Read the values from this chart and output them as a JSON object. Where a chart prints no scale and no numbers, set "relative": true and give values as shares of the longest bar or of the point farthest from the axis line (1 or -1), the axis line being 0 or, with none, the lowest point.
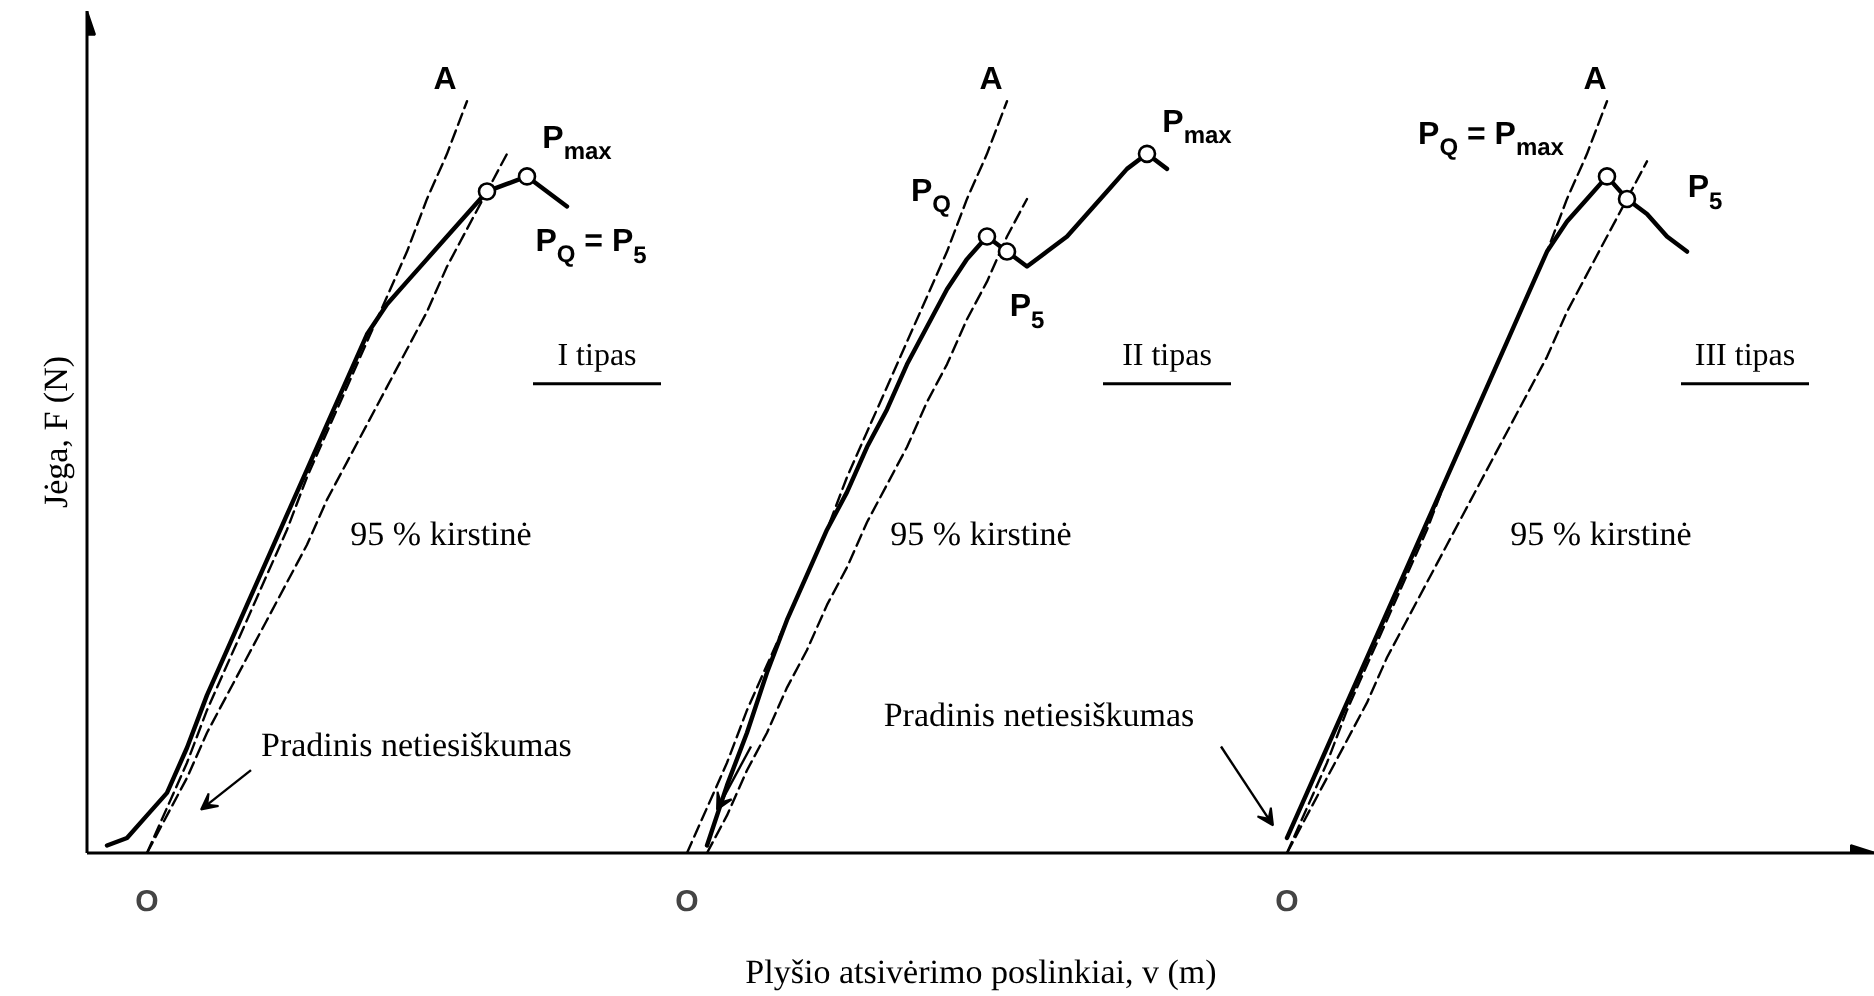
{
  "chart_data": {
    "type": "line",
    "relative": true,
    "xlabel": "Plyšio atsivėrimo poslinkiai, v (m)",
    "ylabel": "Jėga, F (N)",
    "tick_labels": "x",
    "grid": false,
    "categories": [
      null,
      null,
      null,
      "O",
      null,
      null,
      null,
      null,
      null,
      null,
      null,
      null,
      null,
      null,
      null,
      null,
      null,
      null,
      null,
      null,
      null,
      null,
      null,
      null,
      null,
      null,
      null,
      null,
      null,
      null,
      "O",
      null,
      null,
      null,
      null,
      null,
      null,
      null,
      null,
      null,
      null,
      null,
      null,
      null,
      null,
      null,
      null,
      null,
      null,
      null,
      null,
      null,
      null,
      null,
      null,
      null,
      null,
      null,
      null,
      null,
      "O",
      null,
      null,
      null,
      null,
      null,
      null,
      null,
      null,
      null,
      null,
      null,
      null,
      null,
      null,
      null,
      null,
      null,
      null,
      null,
      null,
      null,
      null,
      null,
      null,
      null,
      null,
      null,
      null,
      null
    ],
    "series": [
      {
        "name": "I tipas",
        "color": "#000000",
        "line_style": "solid",
        "values": [
          null,
          0.01,
          0.02,
          0.05,
          0.08,
          0.14,
          0.21,
          0.27,
          0.33,
          0.39,
          0.45,
          0.51,
          0.57,
          0.63,
          0.69,
          0.73,
          0.76,
          0.79,
          0.82,
          0.85,
          0.88,
          0.89,
          0.9,
          0.88,
          0.86,
          null,
          null,
          null,
          null,
          null,
          null,
          null,
          null,
          null,
          null,
          null,
          null,
          null,
          null,
          null,
          null,
          null,
          null,
          null,
          null,
          null,
          null,
          null,
          null,
          null,
          null,
          null,
          null,
          null,
          null,
          null,
          null,
          null,
          null,
          null,
          null,
          null,
          null,
          null,
          null,
          null,
          null,
          null,
          null,
          null,
          null,
          null,
          null,
          null,
          null,
          null,
          null,
          null,
          null,
          null,
          null,
          null,
          null,
          null,
          null,
          null,
          null,
          null,
          null,
          null
        ]
      },
      {
        "color": "#000000",
        "line_style": "dashed",
        "values": [
          null,
          null,
          null,
          0,
          0.06,
          0.12,
          0.19,
          0.25,
          0.31,
          0.37,
          0.43,
          0.5,
          0.56,
          0.62,
          0.68,
          0.74,
          0.8,
          0.87,
          0.93,
          1,
          null,
          null,
          null,
          null,
          null,
          null,
          null,
          null,
          null,
          null,
          null,
          null,
          null,
          null,
          null,
          null,
          null,
          null,
          null,
          null,
          null,
          null,
          null,
          null,
          null,
          null,
          null,
          null,
          null,
          null,
          null,
          null,
          null,
          null,
          null,
          null,
          null,
          null,
          null,
          null,
          null,
          null,
          null,
          null,
          null,
          null,
          null,
          null,
          null,
          null,
          null,
          null,
          null,
          null,
          null,
          null,
          null,
          null,
          null,
          null,
          null,
          null,
          null,
          null,
          null,
          null,
          null,
          null,
          null,
          null
        ]
      },
      {
        "color": "#000000",
        "line_style": "dashed",
        "values": [
          null,
          null,
          null,
          0,
          0.05,
          0.1,
          0.16,
          0.21,
          0.26,
          0.31,
          0.36,
          0.41,
          0.47,
          0.52,
          0.57,
          0.62,
          0.67,
          0.72,
          0.78,
          0.83,
          0.88,
          0.93,
          null,
          null,
          null,
          null,
          null,
          null,
          null,
          null,
          null,
          null,
          null,
          null,
          null,
          null,
          null,
          null,
          null,
          null,
          null,
          null,
          null,
          null,
          null,
          null,
          null,
          null,
          null,
          null,
          null,
          null,
          null,
          null,
          null,
          null,
          null,
          null,
          null,
          null,
          null,
          null,
          null,
          null,
          null,
          null,
          null,
          null,
          null,
          null,
          null,
          null,
          null,
          null,
          null,
          null,
          null,
          null,
          null,
          null,
          null,
          null,
          null,
          null,
          null,
          null,
          null,
          null,
          null,
          null
        ]
      },
      {
        "name": "II tipas",
        "color": "#000000",
        "line_style": "solid",
        "values": [
          null,
          null,
          null,
          null,
          null,
          null,
          null,
          null,
          null,
          null,
          null,
          null,
          null,
          null,
          null,
          null,
          null,
          null,
          null,
          null,
          null,
          null,
          null,
          null,
          null,
          null,
          null,
          null,
          null,
          null,
          null,
          0.01,
          0.09,
          0.16,
          0.24,
          0.31,
          0.37,
          0.43,
          0.48,
          0.54,
          0.59,
          0.65,
          0.7,
          0.75,
          0.79,
          0.82,
          0.8,
          0.78,
          0.8,
          0.82,
          0.85,
          0.88,
          0.91,
          0.93,
          0.91,
          null,
          null,
          null,
          null,
          null,
          null,
          null,
          null,
          null,
          null,
          null,
          null,
          null,
          null,
          null,
          null,
          null,
          null,
          null,
          null,
          null,
          null,
          null,
          null,
          null,
          null,
          null,
          null,
          null,
          null,
          null,
          null,
          null,
          null,
          null
        ]
      },
      {
        "color": "#000000",
        "line_style": "dashed",
        "values": [
          null,
          null,
          null,
          null,
          null,
          null,
          null,
          null,
          null,
          null,
          null,
          null,
          null,
          null,
          null,
          null,
          null,
          null,
          null,
          null,
          null,
          null,
          null,
          null,
          null,
          null,
          null,
          null,
          null,
          null,
          0,
          0.06,
          0.12,
          0.19,
          0.25,
          0.31,
          0.37,
          0.43,
          0.5,
          0.56,
          0.62,
          0.68,
          0.74,
          0.8,
          0.87,
          0.93,
          1,
          null,
          null,
          null,
          null,
          null,
          null,
          null,
          null,
          null,
          null,
          null,
          null,
          null,
          null,
          null,
          null,
          null,
          null,
          null,
          null,
          null,
          null,
          null,
          null,
          null,
          null,
          null,
          null,
          null,
          null,
          null,
          null,
          null,
          null,
          null,
          null,
          null,
          null,
          null,
          null,
          null,
          null,
          null
        ]
      },
      {
        "color": "#000000",
        "line_style": "dashed",
        "values": [
          null,
          null,
          null,
          null,
          null,
          null,
          null,
          null,
          null,
          null,
          null,
          null,
          null,
          null,
          null,
          null,
          null,
          null,
          null,
          null,
          null,
          null,
          null,
          null,
          null,
          null,
          null,
          null,
          null,
          null,
          null,
          0,
          0.05,
          0.11,
          0.16,
          0.22,
          0.27,
          0.33,
          0.38,
          0.44,
          0.49,
          0.54,
          0.6,
          0.65,
          0.71,
          0.76,
          0.82,
          0.87,
          null,
          null,
          null,
          null,
          null,
          null,
          null,
          null,
          null,
          null,
          null,
          null,
          null,
          null,
          null,
          null,
          null,
          null,
          null,
          null,
          null,
          null,
          null,
          null,
          null,
          null,
          null,
          null,
          null,
          null,
          null,
          null,
          null,
          null,
          null,
          null,
          null,
          null,
          null,
          null,
          null,
          null
        ]
      },
      {
        "name": "III tipas",
        "color": "#000000",
        "line_style": "solid",
        "values": [
          null,
          null,
          null,
          null,
          null,
          null,
          null,
          null,
          null,
          null,
          null,
          null,
          null,
          null,
          null,
          null,
          null,
          null,
          null,
          null,
          null,
          null,
          null,
          null,
          null,
          null,
          null,
          null,
          null,
          null,
          null,
          null,
          null,
          null,
          null,
          null,
          null,
          null,
          null,
          null,
          null,
          null,
          null,
          null,
          null,
          null,
          null,
          null,
          null,
          null,
          null,
          null,
          null,
          null,
          null,
          null,
          null,
          null,
          null,
          null,
          0.02,
          0.08,
          0.14,
          0.2,
          0.26,
          0.32,
          0.38,
          0.44,
          0.5,
          0.56,
          0.62,
          0.68,
          0.74,
          0.8,
          0.84,
          0.87,
          0.9,
          0.87,
          0.85,
          0.82,
          0.8,
          null,
          null,
          null,
          null,
          null,
          null,
          null,
          null,
          null
        ]
      },
      {
        "color": "#000000",
        "line_style": "dashed",
        "values": [
          null,
          null,
          null,
          null,
          null,
          null,
          null,
          null,
          null,
          null,
          null,
          null,
          null,
          null,
          null,
          null,
          null,
          null,
          null,
          null,
          null,
          null,
          null,
          null,
          null,
          null,
          null,
          null,
          null,
          null,
          null,
          null,
          null,
          null,
          null,
          null,
          null,
          null,
          null,
          null,
          null,
          null,
          null,
          null,
          null,
          null,
          null,
          null,
          null,
          null,
          null,
          null,
          null,
          null,
          null,
          null,
          null,
          null,
          null,
          null,
          0,
          0.06,
          0.12,
          0.19,
          0.25,
          0.31,
          0.37,
          0.43,
          0.5,
          0.56,
          0.62,
          0.68,
          0.74,
          0.8,
          0.87,
          0.93,
          1,
          null,
          null,
          null,
          null,
          null,
          null,
          null,
          null,
          null,
          null,
          null,
          null,
          null
        ]
      },
      {
        "color": "#000000",
        "line_style": "dashed",
        "values": [
          null,
          null,
          null,
          null,
          null,
          null,
          null,
          null,
          null,
          null,
          null,
          null,
          null,
          null,
          null,
          null,
          null,
          null,
          null,
          null,
          null,
          null,
          null,
          null,
          null,
          null,
          null,
          null,
          null,
          null,
          null,
          null,
          null,
          null,
          null,
          null,
          null,
          null,
          null,
          null,
          null,
          null,
          null,
          null,
          null,
          null,
          null,
          null,
          null,
          null,
          null,
          null,
          null,
          null,
          null,
          null,
          null,
          null,
          null,
          null,
          0,
          0.05,
          0.1,
          0.15,
          0.2,
          0.26,
          0.31,
          0.36,
          0.41,
          0.46,
          0.51,
          0.56,
          0.61,
          0.66,
          0.72,
          0.77,
          0.82,
          0.87,
          0.92,
          null,
          null,
          null,
          null,
          null,
          null,
          null,
          null,
          null,
          null,
          null
        ]
      },
      {
        "type": "scatter",
        "marker": "circle",
        "color": "#000000",
        "values": [
          null,
          null,
          null,
          null,
          null,
          null,
          null,
          null,
          null,
          null,
          null,
          null,
          null,
          null,
          null,
          null,
          null,
          null,
          null,
          null,
          0.88,
          null,
          0.9,
          null,
          null,
          null,
          null,
          null,
          null,
          null,
          null,
          null,
          null,
          null,
          null,
          null,
          null,
          null,
          null,
          null,
          null,
          null,
          null,
          null,
          null,
          0.82,
          0.8,
          null,
          null,
          null,
          null,
          null,
          null,
          0.93,
          null,
          null,
          null,
          null,
          null,
          null,
          null,
          null,
          null,
          null,
          null,
          null,
          null,
          null,
          null,
          null,
          null,
          null,
          null,
          null,
          null,
          null,
          0.9,
          0.87,
          null,
          null,
          null,
          null,
          null,
          null,
          null,
          null,
          null,
          null,
          null,
          null
        ]
      }
    ],
    "annotations": [
      "A",
      "P$_{max}$",
      "P$_{Q}$ = P$_{5}$",
      "95 % kirstinė",
      "Pradinis netiesiškumas",
      "A",
      "P$_{max}$",
      "P$_{Q}$",
      "P$_{5}$",
      "95 % kirstinė",
      "Pradinis netiesiškumas",
      "A",
      "P$_{Q}$ = P$_{max}$",
      "P$_{5}$",
      "95 % kirstinė"
    ]
  }
}
